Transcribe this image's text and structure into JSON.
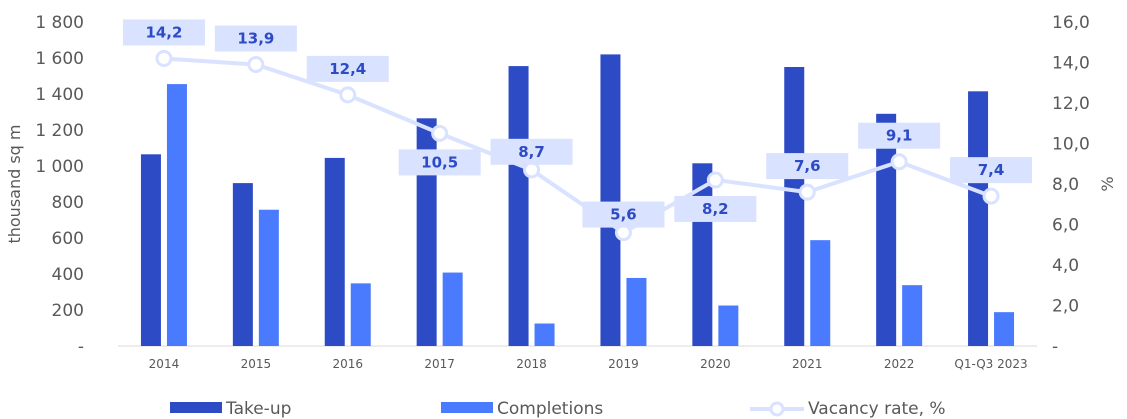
{
  "chart_data": {
    "type": "bar",
    "categories": [
      "2014",
      "2015",
      "2016",
      "2017",
      "2018",
      "2019",
      "2020",
      "2021",
      "2022",
      "Q1-Q3 2023"
    ],
    "series": [
      {
        "name": "Take-up",
        "type": "bar",
        "axis": "left",
        "color": "#2E4BC6",
        "values": [
          1065,
          905,
          1045,
          1265,
          1555,
          1620,
          1015,
          1550,
          1290,
          1415
        ]
      },
      {
        "name": "Completions",
        "type": "bar",
        "axis": "left",
        "color": "#4A7BFF",
        "values": [
          1455,
          757,
          348,
          408,
          125,
          378,
          225,
          588,
          338,
          188
        ]
      },
      {
        "name": "Vacancy rate, %",
        "type": "line",
        "axis": "right",
        "color": "#D9E2FF",
        "values": [
          14.2,
          13.9,
          12.4,
          10.5,
          8.7,
          5.6,
          8.2,
          7.6,
          9.1,
          7.4
        ],
        "labels": [
          "14,2",
          "13,9",
          "12,4",
          "10,5",
          "8,7",
          "5,6",
          "8,2",
          "7,6",
          "9,1",
          "7,4"
        ]
      }
    ],
    "ylabel": "thousand sq m",
    "y2label": "%",
    "ylim": [
      0,
      1800
    ],
    "y2lim": [
      0,
      16
    ],
    "yticks": [
      "-",
      "200",
      "400",
      "600",
      "800",
      "1 000",
      "1 200",
      "1 400",
      "1 600",
      "1 800"
    ],
    "y2ticks": [
      "-",
      "2,0",
      "4,0",
      "6,0",
      "8,0",
      "10,0",
      "12,0",
      "14,0",
      "16,0"
    ],
    "grid": false,
    "legend_position": "bottom"
  }
}
